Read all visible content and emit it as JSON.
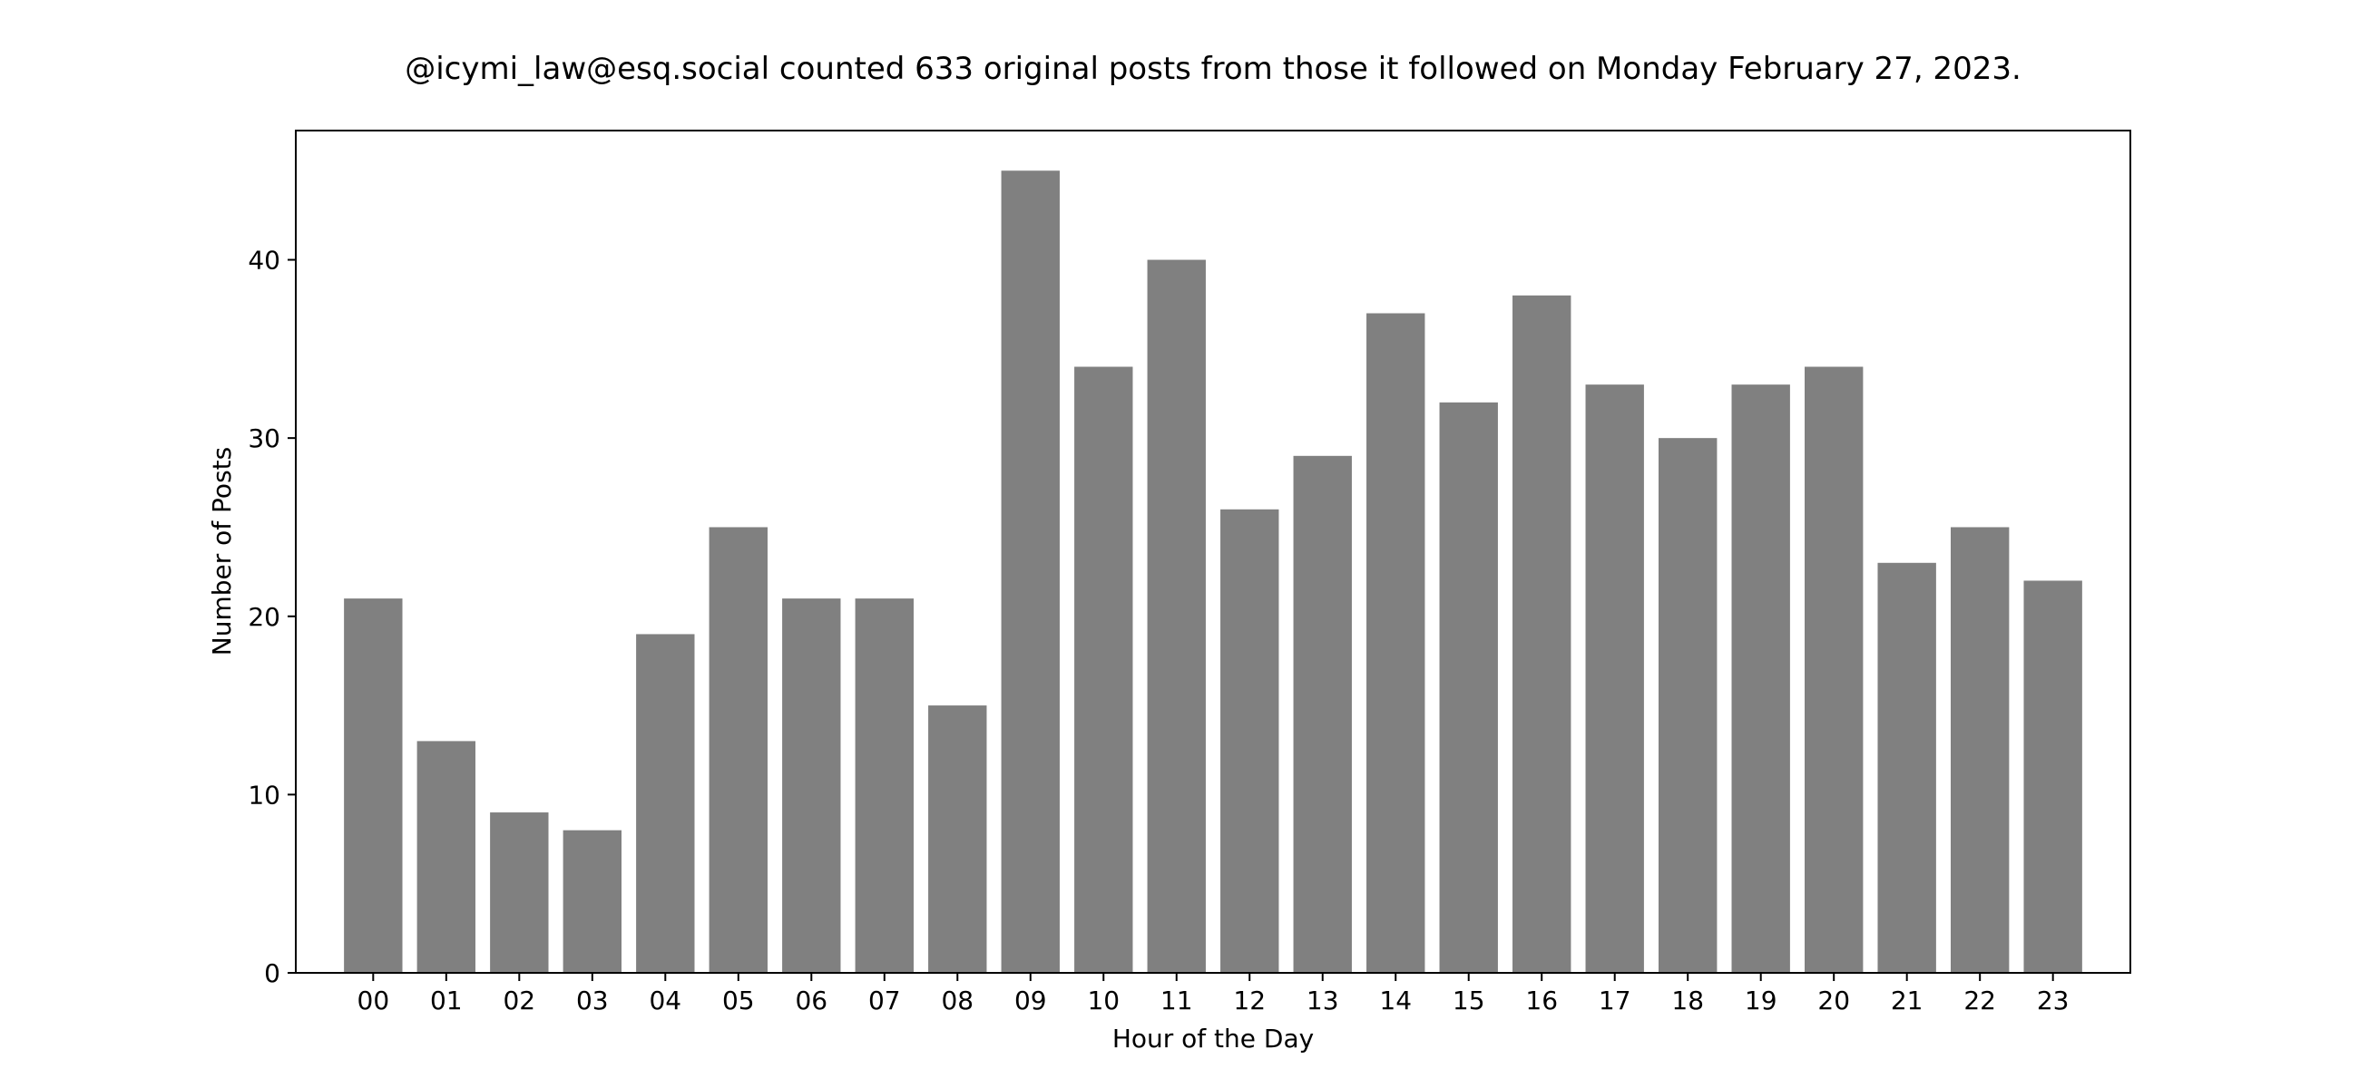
{
  "chart_data": {
    "type": "bar",
    "title": "@icymi_law@esq.social counted 633 original posts from those it followed on Monday February 27, 2023.",
    "xlabel": "Hour of the Day",
    "ylabel": "Number of Posts",
    "categories": [
      "00",
      "01",
      "02",
      "03",
      "04",
      "05",
      "06",
      "07",
      "08",
      "09",
      "10",
      "11",
      "12",
      "13",
      "14",
      "15",
      "16",
      "17",
      "18",
      "19",
      "20",
      "21",
      "22",
      "23"
    ],
    "values": [
      21,
      13,
      9,
      8,
      19,
      25,
      21,
      21,
      15,
      45,
      34,
      40,
      26,
      29,
      37,
      32,
      38,
      33,
      30,
      33,
      34,
      23,
      25,
      22
    ],
    "ylim": [
      0,
      47.25
    ],
    "yticks": [
      0,
      10,
      20,
      30,
      40
    ],
    "grid": false,
    "legend": "none",
    "bar_color": "#808080"
  }
}
